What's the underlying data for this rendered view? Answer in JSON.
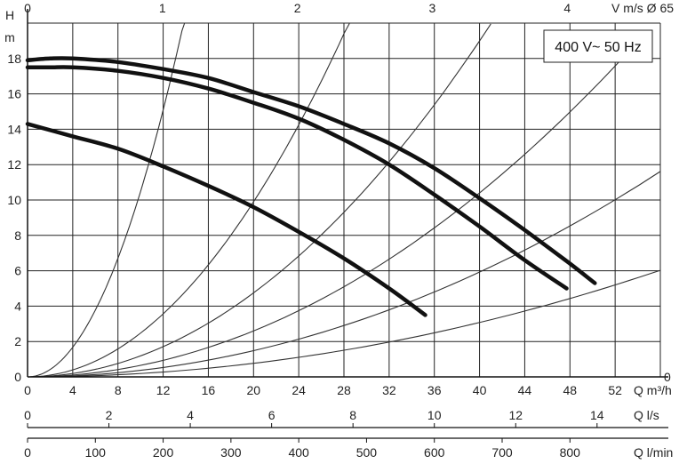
{
  "chart_data": {
    "type": "line",
    "title": "",
    "badge": "400 V~ 50 Hz",
    "grid": true,
    "xlabel": "Q m³/h",
    "ylabel": "H m",
    "xlim": [
      0,
      56
    ],
    "ylim": [
      0,
      20
    ],
    "x_ticks": [
      0,
      4,
      8,
      12,
      16,
      20,
      24,
      28,
      32,
      36,
      40,
      44,
      48,
      52
    ],
    "y_ticks": [
      0,
      2,
      4,
      6,
      8,
      10,
      12,
      14,
      16,
      18
    ],
    "y_ticks_right": [
      0
    ],
    "top_axis": {
      "label": "V m/s Ø 65",
      "ticks": [
        0,
        1,
        2,
        3,
        4
      ],
      "factor_m3h_per_unit": 11.94
    },
    "q_ls_axis": {
      "label": "Q l/s",
      "ticks": [
        0,
        2,
        4,
        6,
        8,
        10,
        12,
        14
      ],
      "factor_m3h_per_unit": 3.6
    },
    "q_lmin_axis": {
      "label": "Q l/min",
      "ticks": [
        0,
        100,
        200,
        300,
        400,
        500,
        600,
        700,
        800
      ],
      "factor_m3h_per_unit": 0.06
    },
    "series": [
      {
        "x": [
          0,
          2,
          4,
          8,
          12,
          16,
          20,
          24,
          28,
          32,
          36,
          40,
          44,
          48,
          50.2
        ],
        "y": [
          17.9,
          18.0,
          18.0,
          17.8,
          17.4,
          16.9,
          16.1,
          15.3,
          14.3,
          13.2,
          11.8,
          10.1,
          8.3,
          6.4,
          5.3
        ]
      },
      {
        "x": [
          0,
          2,
          4,
          8,
          12,
          16,
          20,
          24,
          28,
          32,
          36,
          40,
          44,
          47.7
        ],
        "y": [
          17.5,
          17.5,
          17.5,
          17.3,
          16.9,
          16.3,
          15.5,
          14.6,
          13.4,
          12.0,
          10.3,
          8.5,
          6.6,
          5.0
        ]
      },
      {
        "x": [
          0,
          4,
          8,
          12,
          16,
          20,
          24,
          28,
          32,
          35.2
        ],
        "y": [
          14.3,
          13.6,
          12.9,
          11.9,
          10.8,
          9.6,
          8.2,
          6.7,
          5.0,
          3.5
        ]
      }
    ],
    "system_curves": [
      {
        "k": 0.1048,
        "xmax": 13.9
      },
      {
        "k": 0.02474,
        "xmax": 28.5
      },
      {
        "k": 0.01187,
        "xmax": 41.0
      },
      {
        "k": 0.0065,
        "xmax": 52.5
      },
      {
        "k": 0.003703,
        "xmax": 56.0
      },
      {
        "k": 0.001922,
        "xmax": 56.0
      }
    ]
  }
}
